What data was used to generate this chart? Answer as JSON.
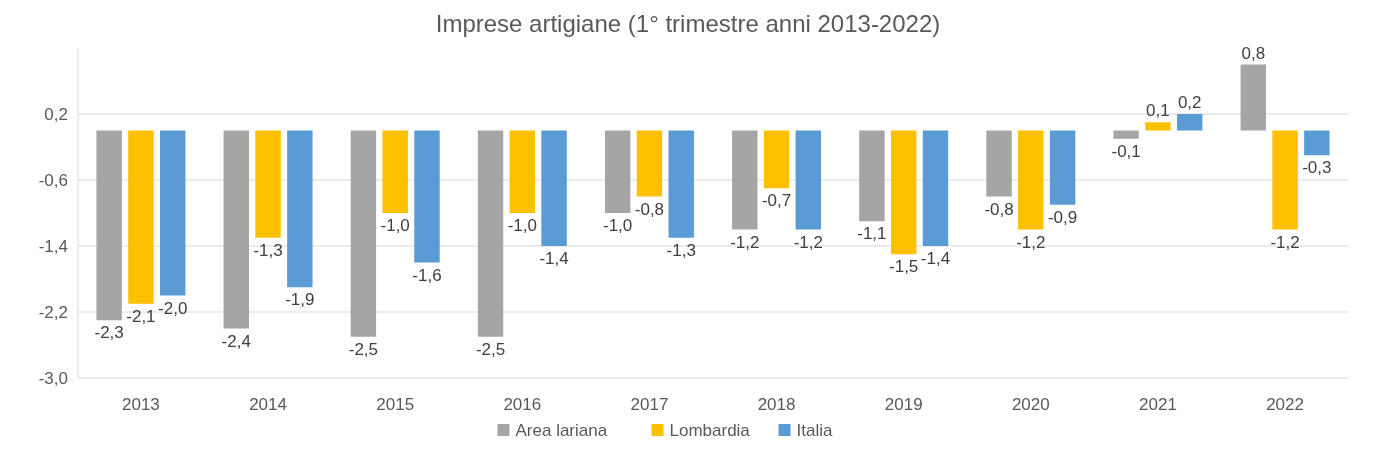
{
  "chart_data": {
    "type": "bar",
    "title": "Imprese artigiane (1° trimestre anni 2013-2022)",
    "categories": [
      "2013",
      "2014",
      "2015",
      "2016",
      "2017",
      "2018",
      "2019",
      "2020",
      "2021",
      "2022"
    ],
    "series": [
      {
        "name": "Area lariana",
        "color": "#a5a5a5",
        "values": [
          -2.3,
          -2.4,
          -2.5,
          -2.5,
          -1.0,
          -1.2,
          -1.1,
          -0.8,
          -0.1,
          0.8
        ],
        "value_labels": [
          "-2,3",
          "-2,4",
          "-2,5",
          "-2,5",
          "-1,0",
          "-1,2",
          "-1,1",
          "-0,8",
          "-0,1",
          "0,8"
        ]
      },
      {
        "name": "Lombardia",
        "color": "#ffc000",
        "values": [
          -2.1,
          -1.3,
          -1.0,
          -1.0,
          -0.8,
          -0.7,
          -1.5,
          -1.2,
          0.1,
          -1.2
        ],
        "value_labels": [
          "-2,1",
          "-1,3",
          "-1,0",
          "-1,0",
          "-0,8",
          "-0,7",
          "-1,5",
          "-1,2",
          "0,1",
          "-1,2"
        ]
      },
      {
        "name": "Italia",
        "color": "#5b9bd5",
        "values": [
          -2.0,
          -1.9,
          -1.6,
          -1.4,
          -1.3,
          -1.2,
          -1.4,
          -0.9,
          0.2,
          -0.3
        ],
        "value_labels": [
          "-2,0",
          "-1,9",
          "-1,6",
          "-1,4",
          "-1,3",
          "-1,2",
          "-1,4",
          "-0,9",
          "0,2",
          "-0,3"
        ]
      }
    ],
    "ylim": [
      -3.0,
      1.0
    ],
    "yticks": [
      {
        "value": 0.2,
        "label": "0,2"
      },
      {
        "value": -0.6,
        "label": "-0,6"
      },
      {
        "value": -1.4,
        "label": "-1,4"
      },
      {
        "value": -2.2,
        "label": "-2,2"
      },
      {
        "value": -3.0,
        "label": "-3,0"
      }
    ],
    "grid": "y",
    "legend": "bottom"
  }
}
